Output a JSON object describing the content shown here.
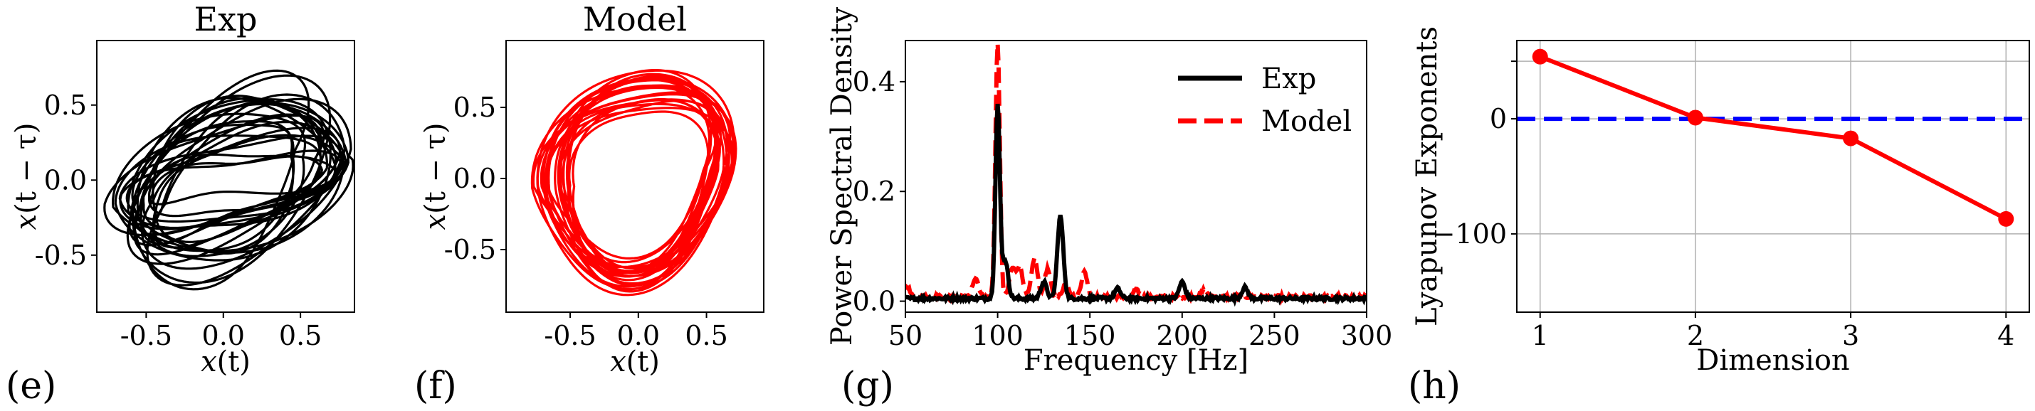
{
  "chart_data": [
    {
      "panel_label": "(e)",
      "type": "line",
      "subtype": "phase-portrait",
      "title": "Exp",
      "xlabel_var": "x",
      "xlabel_arg": "(t)",
      "ylabel_var": "x",
      "ylabel_arg": "(t − τ)",
      "xlim": [
        -0.82,
        0.85
      ],
      "ylim": [
        -0.88,
        0.93
      ],
      "xticks": [
        -0.5,
        0.0,
        0.5
      ],
      "xtick_labels": [
        "-0.5",
        "0.0",
        "0.5"
      ],
      "yticks": [
        -0.5,
        0.0,
        0.5
      ],
      "ytick_labels": [
        "-0.5",
        "0.0",
        "0.5"
      ],
      "color": "#000000",
      "attractor": {
        "center": [
          0.05,
          -0.01
        ],
        "rx_range": [
          0.3,
          0.79
        ],
        "ry_range": [
          0.12,
          0.8
        ],
        "loops": 24
      }
    },
    {
      "panel_label": "(f)",
      "type": "line",
      "subtype": "phase-portrait",
      "title": "Model",
      "xlabel_var": "x",
      "xlabel_arg": "(t)",
      "ylabel_var": "x",
      "ylabel_arg": "(t − τ)",
      "xlim": [
        -0.97,
        0.92
      ],
      "ylim": [
        -0.94,
        0.97
      ],
      "xticks": [
        -0.5,
        0.0,
        0.5
      ],
      "xtick_labels": [
        "-0.5",
        "0.0",
        "0.5"
      ],
      "yticks": [
        -0.5,
        0.0,
        0.5
      ],
      "ytick_labels": [
        "-0.5",
        "0.0",
        "0.5"
      ],
      "color": "#ff0000",
      "attractor": {
        "center": [
          0.0,
          0.0
        ],
        "rx_range": [
          0.45,
          0.81
        ],
        "ry_range": [
          0.45,
          0.82
        ],
        "loops": 22
      }
    },
    {
      "panel_label": "(g)",
      "type": "line",
      "title": "",
      "xlabel": "Frequency [Hz]",
      "ylabel": "Power Spectral Density",
      "xlim": [
        50,
        300
      ],
      "ylim": [
        -0.02,
        0.475
      ],
      "xticks": [
        50,
        100,
        150,
        200,
        250,
        300
      ],
      "xtick_labels": [
        "50",
        "100",
        "150",
        "200",
        "250",
        "300"
      ],
      "yticks": [
        0.0,
        0.2,
        0.4
      ],
      "ytick_labels": [
        "0.0",
        "0.2",
        "0.4"
      ],
      "legend": "top-right",
      "series": [
        {
          "name": "Exp",
          "color": "#000000",
          "style": "solid",
          "peaks": [
            [
              100,
              0.35
            ],
            [
              104,
              0.07
            ],
            [
              125,
              0.03
            ],
            [
              134,
              0.15
            ],
            [
              165,
              0.018
            ],
            [
              200,
              0.03
            ],
            [
              234,
              0.02
            ]
          ],
          "baseline": 0.005
        },
        {
          "name": "Model",
          "color": "#ff0000",
          "style": "dashed",
          "peaks": [
            [
              51,
              0.018
            ],
            [
              88,
              0.035
            ],
            [
              100,
              0.46
            ],
            [
              108,
              0.05
            ],
            [
              112,
              0.055
            ],
            [
              120,
              0.07
            ],
            [
              127,
              0.05
            ],
            [
              137,
              0.025
            ],
            [
              147,
              0.045
            ],
            [
              175,
              0.012
            ],
            [
              212,
              0.012
            ]
          ],
          "baseline": 0.008
        }
      ]
    },
    {
      "panel_label": "(h)",
      "type": "line",
      "title": "",
      "xlabel": "Dimension",
      "ylabel": "Lyapunov Exponents",
      "xlim": [
        0.85,
        4.15
      ],
      "ylim": [
        -168,
        68
      ],
      "xticks": [
        1,
        2,
        3,
        4
      ],
      "xtick_labels": [
        "1",
        "2",
        "3",
        "4"
      ],
      "yticks": [
        -100,
        0,
        50
      ],
      "ytick_labels": [
        "−100",
        "0",
        ""
      ],
      "grid": true,
      "x": [
        1,
        2,
        3,
        4
      ],
      "values": [
        54,
        1,
        -17,
        -87
      ],
      "reference_line": {
        "y": 0,
        "color": "#0000ff",
        "style": "dashed"
      },
      "color": "#ff0000"
    }
  ]
}
